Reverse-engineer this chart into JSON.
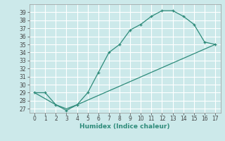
{
  "xlabel": "Humidex (Indice chaleur)",
  "background_color": "#cce9ea",
  "grid_color": "#ffffff",
  "line_color": "#2e8b7a",
  "xlim": [
    -0.5,
    17.5
  ],
  "ylim": [
    26.5,
    40.0
  ],
  "xticks": [
    0,
    1,
    2,
    3,
    4,
    5,
    6,
    7,
    8,
    9,
    10,
    11,
    12,
    13,
    14,
    15,
    16,
    17
  ],
  "yticks": [
    27,
    28,
    29,
    30,
    31,
    32,
    33,
    34,
    35,
    36,
    37,
    38,
    39
  ],
  "line1_x": [
    0,
    1,
    2,
    3,
    4,
    5,
    6,
    7,
    8,
    9,
    10,
    11,
    12,
    13,
    14,
    15,
    16,
    17
  ],
  "line1_y": [
    29,
    29,
    27.5,
    26.8,
    27.5,
    29,
    31.5,
    34,
    35,
    36.8,
    37.5,
    38.5,
    39.2,
    39.2,
    38.5,
    37.5,
    35.3,
    35
  ],
  "line2_x": [
    0,
    2,
    3,
    4,
    17
  ],
  "line2_y": [
    29,
    27.5,
    27.0,
    27.5,
    35
  ],
  "tick_fontsize": 5.5,
  "xlabel_fontsize": 6.5,
  "tick_color": "#444444",
  "xlabel_color": "#2e8b7a"
}
